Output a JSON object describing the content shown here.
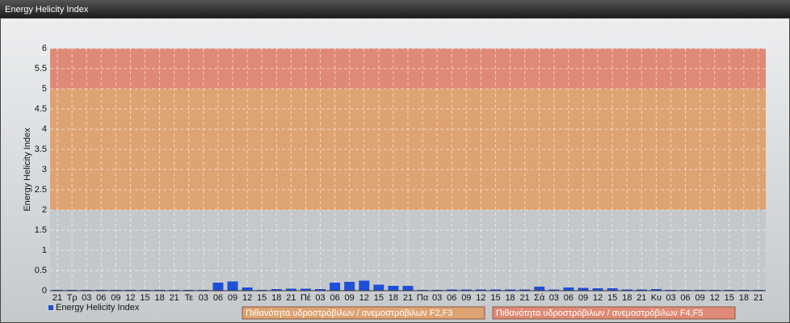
{
  "chart_data": {
    "type": "bar",
    "title": "Energy Helicity Index",
    "y_label": "Energy Helicity Index",
    "categories": [
      "21",
      "Τρ",
      "03",
      "06",
      "09",
      "12",
      "15",
      "18",
      "21",
      "Τε",
      "03",
      "06",
      "09",
      "12",
      "15",
      "18",
      "21",
      "Πέ",
      "03",
      "06",
      "09",
      "12",
      "15",
      "18",
      "21",
      "Πα",
      "03",
      "06",
      "09",
      "12",
      "15",
      "18",
      "21",
      "Σά",
      "03",
      "06",
      "09",
      "12",
      "15",
      "18",
      "21",
      "Κυ",
      "03",
      "06",
      "09",
      "12",
      "15",
      "18",
      "21"
    ],
    "series": [
      {
        "name": "Energy Helicity Index",
        "color": "#1f4fd8",
        "values": [
          0.02,
          0.02,
          0.02,
          0.02,
          0.02,
          0.02,
          0.02,
          0.02,
          0.02,
          0.02,
          0.02,
          0.2,
          0.23,
          0.08,
          0.02,
          0.04,
          0.05,
          0.05,
          0.04,
          0.2,
          0.22,
          0.25,
          0.15,
          0.12,
          0.12,
          0.02,
          0.02,
          0.03,
          0.03,
          0.03,
          0.03,
          0.03,
          0.03,
          0.1,
          0.03,
          0.08,
          0.07,
          0.06,
          0.06,
          0.03,
          0.03,
          0.04,
          0.02,
          0.02,
          0.02,
          0.02,
          0.02,
          0.02,
          0.02
        ]
      }
    ],
    "ylim": [
      0,
      6
    ],
    "yticks": [
      0,
      0.5,
      1,
      1.5,
      2,
      2.5,
      3,
      3.5,
      4,
      4.5,
      5,
      5.5,
      6
    ],
    "grid": true,
    "bands": [
      {
        "from": 2,
        "to": 5,
        "color": "#dea372",
        "label": "Πιθανότητα υδροστρόβιλων / ανεμοστρόβιλων F2,F3"
      },
      {
        "from": 5,
        "to": 6,
        "color": "#df8a76",
        "label": "Πιθανότητα υδροστρόβιλων / ανεμοστρόβιλων F4,F5"
      }
    ]
  }
}
